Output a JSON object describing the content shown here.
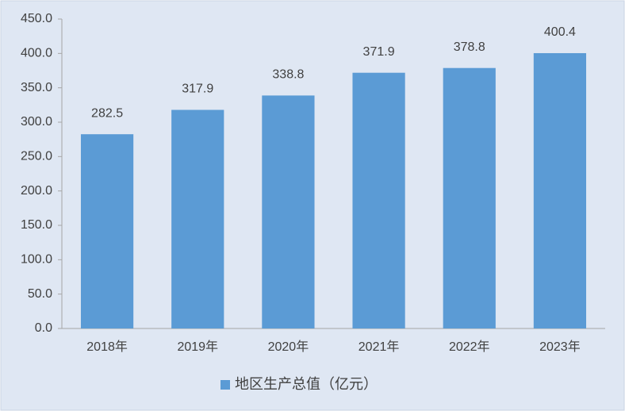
{
  "chart_data": {
    "type": "bar",
    "categories": [
      "2018年",
      "2019年",
      "2020年",
      "2021年",
      "2022年",
      "2023年"
    ],
    "series": [
      {
        "name": "地区生产总值（亿元）",
        "color": "#5b9bd5",
        "values": [
          282.5,
          317.9,
          338.8,
          371.9,
          378.8,
          400.4
        ]
      }
    ],
    "ylim": [
      0,
      450
    ],
    "yticks": [
      {
        "value": 0,
        "label": "0.0"
      },
      {
        "value": 50,
        "label": "50.0"
      },
      {
        "value": 100,
        "label": "100.0"
      },
      {
        "value": 150,
        "label": "150.0"
      },
      {
        "value": 200,
        "label": "200.0"
      },
      {
        "value": 250,
        "label": "250.0"
      },
      {
        "value": 300,
        "label": "300.0"
      },
      {
        "value": 350,
        "label": "350.0"
      },
      {
        "value": 400,
        "label": "400.0"
      },
      {
        "value": 450,
        "label": "450.0"
      }
    ],
    "grid": false,
    "legend": "bottom"
  }
}
